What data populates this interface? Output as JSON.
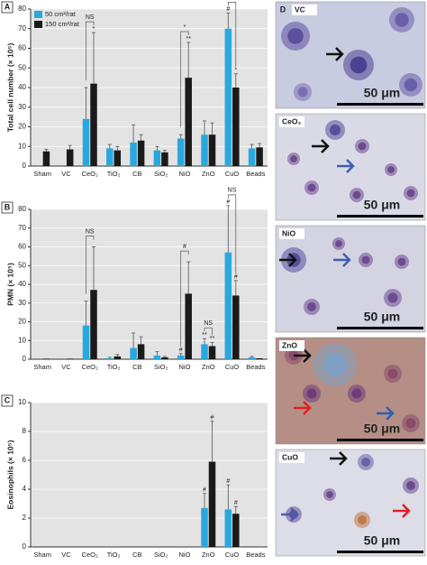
{
  "chart_data": [
    {
      "type": "bar",
      "panel": "A",
      "ylabel": "Total cell number (× 10⁵)",
      "categories": [
        "Sham",
        "VC",
        "CeO₂",
        "TiO₂",
        "CB",
        "SiO₂",
        "NiO",
        "ZnO",
        "CuO",
        "Beads"
      ],
      "series": [
        {
          "name": "50 cm²/rat",
          "color": "#29a8df",
          "values": [
            null,
            null,
            24,
            9,
            12,
            8,
            14,
            16,
            70,
            9
          ],
          "errors": [
            null,
            null,
            16,
            2,
            9,
            2,
            2,
            7,
            8,
            2
          ],
          "labels": [
            null,
            null,
            null,
            null,
            null,
            null,
            null,
            null,
            "#",
            null
          ]
        },
        {
          "name": "150 cm²/rat",
          "color": "#1a1a1a",
          "values": [
            7.5,
            8.5,
            42,
            8,
            13,
            7,
            45,
            16,
            40,
            9.5
          ],
          "errors": [
            1,
            2,
            26,
            2,
            3,
            1,
            18,
            6,
            7,
            2
          ],
          "labels": [
            null,
            null,
            "*",
            null,
            null,
            null,
            "**",
            null,
            "*",
            null
          ]
        }
      ],
      "brackets": [
        {
          "category": "CeO₂",
          "text": "NS"
        },
        {
          "category": "NiO",
          "text": "*"
        },
        {
          "category": "CuO",
          "text": "NS"
        }
      ],
      "ylim": [
        0,
        80
      ],
      "yticks": [
        0,
        10,
        20,
        30,
        40,
        50,
        60,
        70,
        80
      ],
      "grid": true,
      "legend": "upper left"
    },
    {
      "type": "bar",
      "panel": "B",
      "ylabel": "PMN (× 10⁵)",
      "categories": [
        "Sham",
        "VC",
        "CeO₂",
        "TiO₂",
        "CB",
        "SiO₂",
        "NiO",
        "ZnO",
        "CuO",
        "Beads"
      ],
      "series": [
        {
          "color": "#29a8df",
          "values": [
            null,
            null,
            18,
            0.5,
            6,
            2,
            2,
            8,
            57,
            1
          ],
          "errors": [
            null,
            null,
            13,
            0.5,
            8,
            2,
            1,
            3,
            25,
            0.5
          ],
          "labels": [
            null,
            null,
            null,
            null,
            null,
            null,
            "#",
            "**",
            "#",
            null
          ]
        },
        {
          "color": "#1a1a1a",
          "values": [
            0.3,
            0.3,
            37,
            1.5,
            8,
            1,
            35,
            7,
            34,
            0.5
          ],
          "errors": [
            null,
            null,
            23,
            1,
            4,
            0.5,
            17,
            2,
            8,
            null
          ],
          "labels": [
            null,
            null,
            null,
            null,
            null,
            null,
            null,
            "**",
            "#",
            null
          ]
        }
      ],
      "brackets": [
        {
          "category": "CeO₂",
          "text": "NS"
        },
        {
          "category": "NiO",
          "text": "#"
        },
        {
          "category": "ZnO",
          "text": "NS"
        },
        {
          "category": "CuO",
          "text": "NS"
        }
      ],
      "ylim": [
        0,
        80
      ],
      "yticks": [
        0,
        10,
        20,
        30,
        40,
        50,
        60,
        70,
        80
      ],
      "grid": true
    },
    {
      "type": "bar",
      "panel": "C",
      "ylabel": "Eosinophils (× 10⁵)",
      "categories": [
        "Sham",
        "VC",
        "CeO₂",
        "TiO₂",
        "CB",
        "SiO₂",
        "NiO",
        "ZnO",
        "CuO",
        "Beads"
      ],
      "series": [
        {
          "color": "#29a8df",
          "values": [
            null,
            null,
            null,
            null,
            null,
            null,
            null,
            2.7,
            2.6,
            null
          ],
          "errors": [
            null,
            null,
            null,
            null,
            null,
            null,
            null,
            1,
            1.7,
            null
          ],
          "labels": [
            null,
            null,
            null,
            null,
            null,
            null,
            null,
            "#",
            "#",
            null
          ]
        },
        {
          "color": "#1a1a1a",
          "values": [
            null,
            null,
            null,
            null,
            null,
            null,
            null,
            5.9,
            2.3,
            null
          ],
          "errors": [
            null,
            null,
            null,
            null,
            null,
            null,
            null,
            2.8,
            0.5,
            null
          ],
          "labels": [
            null,
            null,
            null,
            null,
            null,
            null,
            null,
            "#",
            "#",
            null
          ]
        }
      ],
      "brackets": [],
      "ylim": [
        0,
        10
      ],
      "yticks": [
        0,
        2,
        4,
        6,
        8,
        10
      ],
      "grid": true
    }
  ],
  "panel_d": {
    "panel": "D",
    "images": [
      {
        "label": "VC",
        "scale": "50 μm"
      },
      {
        "label": "CeO₂",
        "scale": "50 μm"
      },
      {
        "label": "NiO",
        "scale": "50 μm"
      },
      {
        "label": "ZnO",
        "scale": "50 μm"
      },
      {
        "label": "CuO",
        "scale": "50 μm"
      }
    ]
  }
}
